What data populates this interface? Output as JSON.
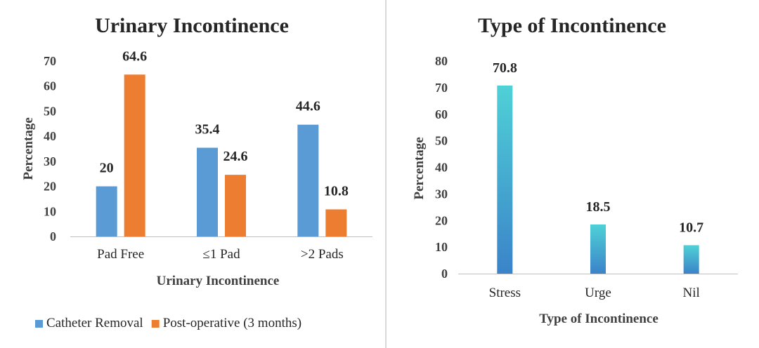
{
  "chart_data": [
    {
      "type": "bar",
      "title": "Urinary Incontinence",
      "xlabel": "Urinary Incontinence",
      "ylabel": "Percentage",
      "categories": [
        "Pad Free",
        "≤1 Pad",
        ">2 Pads"
      ],
      "series": [
        {
          "name": "Catheter Removal",
          "values": [
            20,
            35.4,
            44.6
          ],
          "color": "#5b9bd5"
        },
        {
          "name": "Post-operative (3 months)",
          "values": [
            64.6,
            24.6,
            10.8
          ],
          "color": "#ed7d31"
        }
      ],
      "ylim": [
        0,
        70
      ],
      "yticks": [
        0,
        10,
        20,
        30,
        40,
        50,
        60,
        70
      ],
      "grid": false,
      "legend": "bottom"
    },
    {
      "type": "bar",
      "title": "Type of Incontinence",
      "xlabel": "Type of Incontinence",
      "ylabel": "Percentage",
      "categories": [
        "Stress",
        "Urge",
        "Nil"
      ],
      "series": [
        {
          "values": [
            70.8,
            18.5,
            10.7
          ],
          "color_top": "#4fd1d6",
          "color_bottom": "#3b83c9"
        }
      ],
      "ylim": [
        0,
        80
      ],
      "yticks": [
        0,
        10,
        20,
        30,
        40,
        50,
        60,
        70,
        80
      ],
      "grid": false,
      "legend": "none"
    }
  ]
}
